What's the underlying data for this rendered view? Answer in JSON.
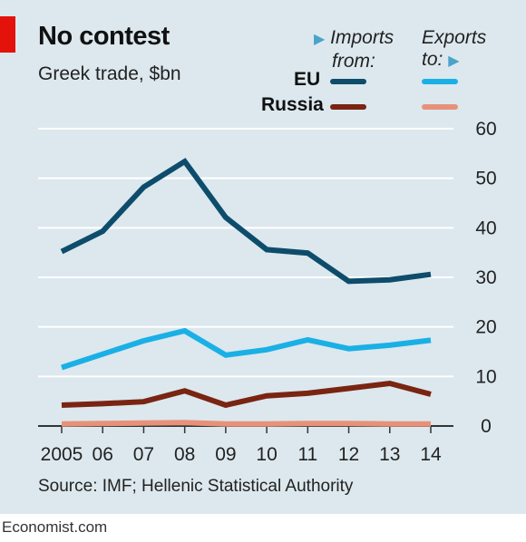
{
  "title": "No contest",
  "subtitle": "Greek trade, $bn",
  "legend": {
    "imports_header_line1": "Imports",
    "imports_header_line2": "from:",
    "exports_header_line1": "Exports",
    "exports_header_line2": "to:",
    "rows": [
      {
        "label": "EU",
        "imports_color": "#0e4c6b",
        "exports_color": "#1ab0e6"
      },
      {
        "label": "Russia",
        "imports_color": "#7a2412",
        "exports_color": "#e8917a"
      }
    ]
  },
  "source": "Source: IMF; Hellenic Statistical Authority",
  "brand": "Economist.com",
  "colors": {
    "accent": "#e3120b",
    "background": "#dce8ee"
  },
  "chart_data": {
    "type": "line",
    "title": "No contest",
    "subtitle": "Greek trade, $bn",
    "x": [
      "2005",
      "06",
      "07",
      "08",
      "09",
      "10",
      "11",
      "12",
      "13",
      "14"
    ],
    "ylim": [
      0,
      60
    ],
    "yticks": [
      0,
      10,
      20,
      30,
      40,
      50,
      60
    ],
    "grid": true,
    "y_axis_side": "right",
    "series": [
      {
        "name": "Imports from EU",
        "color": "#0e4c6b",
        "values": [
          35.2,
          39.3,
          48.2,
          53.4,
          42.1,
          35.6,
          34.9,
          29.2,
          29.5,
          30.6
        ]
      },
      {
        "name": "Exports to EU",
        "color": "#1ab0e6",
        "values": [
          11.8,
          14.5,
          17.2,
          19.2,
          14.3,
          15.4,
          17.4,
          15.6,
          16.3,
          17.3
        ]
      },
      {
        "name": "Imports from Russia",
        "color": "#7a2412",
        "values": [
          4.2,
          4.5,
          4.9,
          7.1,
          4.2,
          6.1,
          6.6,
          7.6,
          8.6,
          6.4
        ]
      },
      {
        "name": "Exports to Russia",
        "color": "#e8917a",
        "values": [
          0.4,
          0.5,
          0.6,
          0.7,
          0.4,
          0.4,
          0.5,
          0.5,
          0.4,
          0.4
        ]
      }
    ]
  }
}
